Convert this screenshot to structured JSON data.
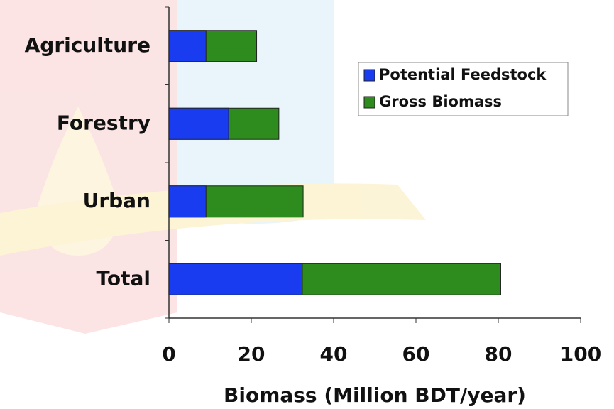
{
  "chart_data": {
    "type": "bar",
    "orientation": "horizontal",
    "overlap": true,
    "x_label": "Biomass (Million BDT/year)",
    "categories": [
      "Agriculture",
      "Forestry",
      "Urban",
      "Total"
    ],
    "series": [
      {
        "name": "Gross Biomass",
        "color": "#2e8b1e",
        "values": [
          21.3,
          26.7,
          32.6,
          80.6
        ]
      },
      {
        "name": "Potential Feedstock",
        "color": "#1a3cf0",
        "values": [
          9,
          14.5,
          9,
          32.4
        ]
      }
    ],
    "legend_order": [
      1,
      0
    ],
    "xlim": [
      0,
      100
    ],
    "xticks": [
      0,
      20,
      40,
      60,
      80,
      100
    ]
  }
}
